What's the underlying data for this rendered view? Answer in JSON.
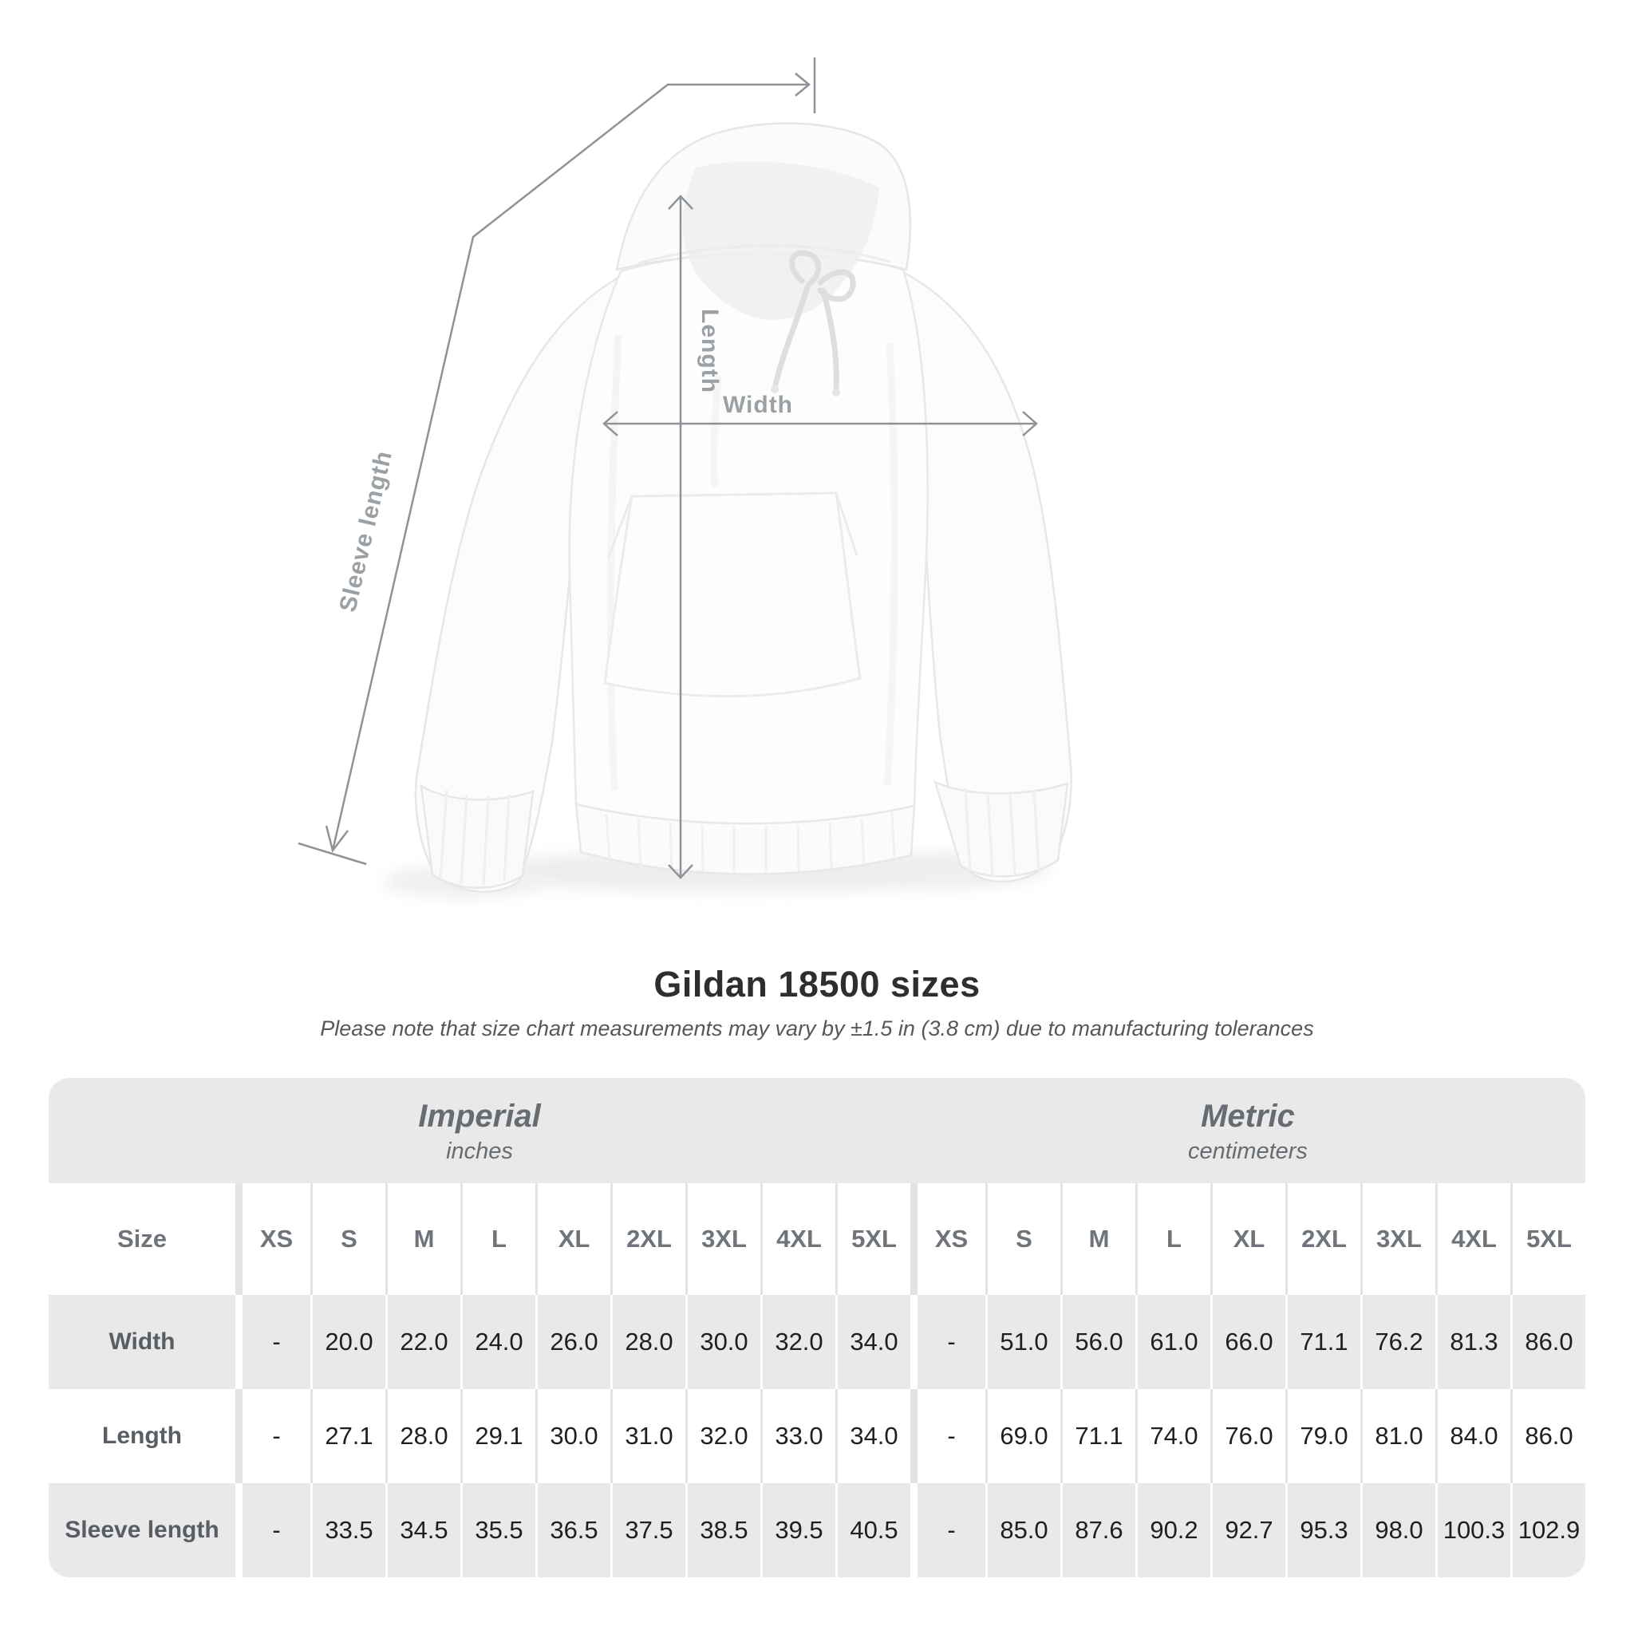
{
  "diagram": {
    "labels": {
      "sleeve_length": "Sleeve length",
      "length": "Length",
      "width": "Width"
    }
  },
  "heading": {
    "title": "Gildan 18500 sizes",
    "note": "Please note that size chart measurements may vary by ±1.5 in (3.8 cm) due to manufacturing tolerances"
  },
  "chart_data": {
    "type": "table",
    "title": "Gildan 18500 sizes",
    "size_col_header": "Size",
    "column_groups": [
      {
        "label": "Imperial",
        "unit": "inches",
        "sizes": [
          "XS",
          "S",
          "M",
          "L",
          "XL",
          "2XL",
          "3XL",
          "4XL",
          "5XL"
        ]
      },
      {
        "label": "Metric",
        "unit": "centimeters",
        "sizes": [
          "XS",
          "S",
          "M",
          "L",
          "XL",
          "2XL",
          "3XL",
          "4XL",
          "5XL"
        ]
      }
    ],
    "rows": [
      {
        "label": "Width",
        "imperial": [
          "-",
          "20.0",
          "22.0",
          "24.0",
          "26.0",
          "28.0",
          "30.0",
          "32.0",
          "34.0"
        ],
        "metric": [
          "-",
          "51.0",
          "56.0",
          "61.0",
          "66.0",
          "71.1",
          "76.2",
          "81.3",
          "86.0"
        ]
      },
      {
        "label": "Length",
        "imperial": [
          "-",
          "27.1",
          "28.0",
          "29.1",
          "30.0",
          "31.0",
          "32.0",
          "33.0",
          "34.0"
        ],
        "metric": [
          "-",
          "69.0",
          "71.1",
          "74.0",
          "76.0",
          "79.0",
          "81.0",
          "84.0",
          "86.0"
        ]
      },
      {
        "label": "Sleeve length",
        "imperial": [
          "-",
          "33.5",
          "34.5",
          "35.5",
          "36.5",
          "37.5",
          "38.5",
          "39.5",
          "40.5"
        ],
        "metric": [
          "-",
          "85.0",
          "87.6",
          "90.2",
          "92.7",
          "95.3",
          "98.0",
          "100.3",
          "102.9"
        ]
      }
    ]
  },
  "colors": {
    "table_shade": "#e9e9e9",
    "separator_light": "#e3e3e3",
    "value_text": "#1d1f21",
    "muted_text": "#666c71",
    "diagram_label": "#9aa0a4",
    "measure_line": "#8d9397"
  }
}
